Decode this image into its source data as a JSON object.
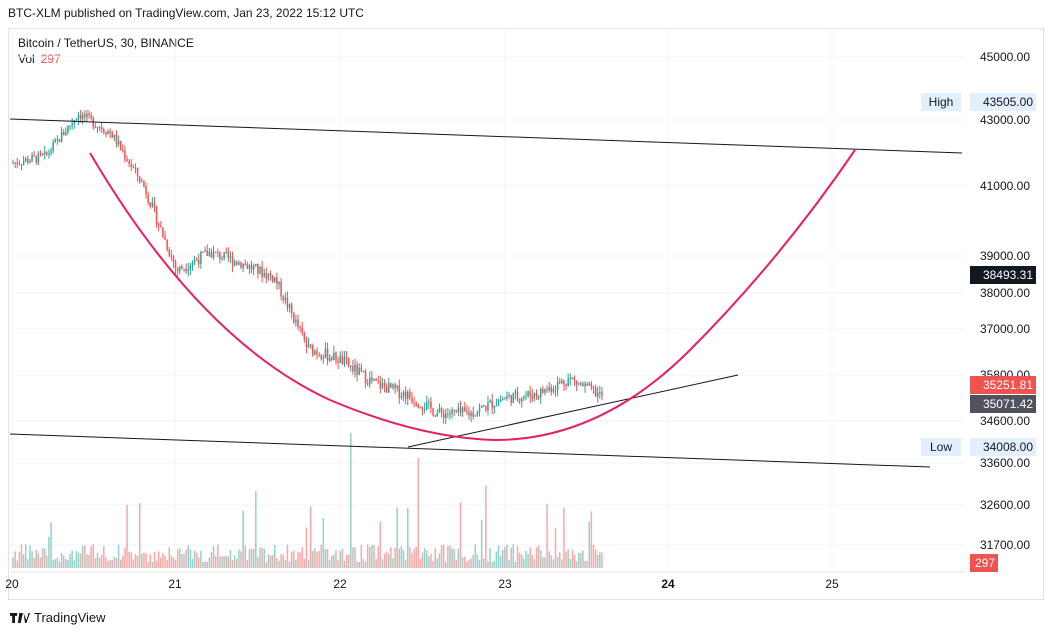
{
  "published_by": "BTC-XLM published on TradingView.com, Jan 23, 2022 15:12 UTC",
  "symbol_legend": "Bitcoin / TetherUS, 30, BINANCE",
  "volume_legend": {
    "label": "Vol",
    "value": "297"
  },
  "footer_brand": "TradingView",
  "price_axis": {
    "ticks": [
      "45000.00",
      "43000.00",
      "41000.00",
      "39000.00",
      "38000.00",
      "37000.00",
      "35800.00",
      "34600.00",
      "33600.00",
      "32600.00",
      "31700.00"
    ]
  },
  "price_tags": [
    {
      "label": "High",
      "value": "43505.00",
      "style": "light"
    },
    {
      "label": "",
      "value": "38493.31",
      "style": "dark"
    },
    {
      "label": "",
      "value": "35251.81",
      "style": "red"
    },
    {
      "label": "",
      "value": "35071.42",
      "style": "gray"
    },
    {
      "label": "Low",
      "value": "34008.00",
      "style": "light"
    },
    {
      "label": "",
      "value": "297",
      "style": "red"
    }
  ],
  "time_axis": {
    "ticks": [
      {
        "label": "20",
        "bold": false
      },
      {
        "label": "21",
        "bold": false
      },
      {
        "label": "22",
        "bold": false
      },
      {
        "label": "23",
        "bold": false
      },
      {
        "label": "24",
        "bold": true
      },
      {
        "label": "25",
        "bold": false
      }
    ]
  },
  "colors": {
    "up": "#26a69a",
    "down": "#ef5350",
    "curve": "#e91e63",
    "line": "#131722",
    "grid": "#f0f3fa"
  },
  "chart_data": {
    "type": "candlestick",
    "title": "Bitcoin / TetherUS, 30, BINANCE",
    "series": [
      {
        "name": "Price (close, approx)",
        "x": [
          "20",
          "20.5",
          "20.7",
          "20.9",
          "21.0",
          "21.2",
          "21.4",
          "21.6",
          "21.8",
          "21.9",
          "22.0",
          "22.2",
          "22.4",
          "22.6",
          "22.8",
          "23.0",
          "23.2",
          "23.4",
          "23.6"
        ],
        "values": [
          41700,
          41900,
          43200,
          42600,
          41000,
          38600,
          39100,
          38800,
          38400,
          36500,
          36200,
          35600,
          35300,
          34800,
          34800,
          35200,
          35300,
          35700,
          35250
        ]
      }
    ],
    "annotations": [
      "Upper channel line",
      "Lower channel line",
      "Rounding bottom curve",
      "Rising trend line"
    ],
    "high": 43505.0,
    "low": 34008.0,
    "last": 35251.81
  }
}
